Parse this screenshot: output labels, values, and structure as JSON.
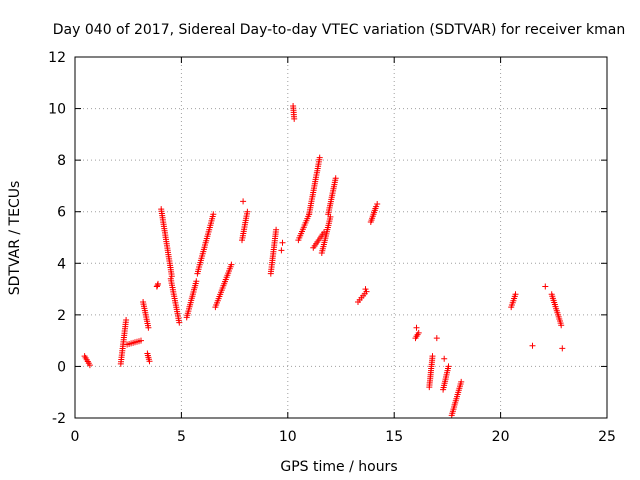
{
  "chart_data": {
    "type": "scatter",
    "title": "Day 040 of 2017, Sidereal Day-to-day VTEC variation (SDTVAR) for receiver kman",
    "xlabel": "GPS time / hours",
    "ylabel": "SDTVAR / TECUs",
    "xlim": [
      0,
      25
    ],
    "ylim": [
      -2,
      12
    ],
    "xticks": [
      0,
      5,
      10,
      15,
      20,
      25
    ],
    "yticks": [
      -2,
      0,
      2,
      4,
      6,
      8,
      10,
      12
    ],
    "grid": true,
    "marker": "+",
    "series_color": "#ff0000",
    "segments": [
      {
        "x0": 0.45,
        "y0": 0.4,
        "x1": 0.7,
        "y1": 0.05
      },
      {
        "x0": 2.15,
        "y0": 0.1,
        "x1": 2.4,
        "y1": 1.8
      },
      {
        "x0": 2.45,
        "y0": 0.85,
        "x1": 3.1,
        "y1": 1.0
      },
      {
        "x0": 3.2,
        "y0": 2.5,
        "x1": 3.45,
        "y1": 1.5
      },
      {
        "x0": 3.4,
        "y0": 0.5,
        "x1": 3.5,
        "y1": 0.2
      },
      {
        "x0": 3.85,
        "y0": 3.1,
        "x1": 3.9,
        "y1": 3.2
      },
      {
        "x0": 4.05,
        "y0": 6.1,
        "x1": 4.55,
        "y1": 3.5
      },
      {
        "x0": 4.5,
        "y0": 3.4,
        "x1": 4.9,
        "y1": 1.7
      },
      {
        "x0": 5.25,
        "y0": 1.9,
        "x1": 5.7,
        "y1": 3.3
      },
      {
        "x0": 5.75,
        "y0": 3.6,
        "x1": 6.5,
        "y1": 5.9
      },
      {
        "x0": 6.6,
        "y0": 2.3,
        "x1": 7.35,
        "y1": 3.95
      },
      {
        "x0": 7.85,
        "y0": 4.9,
        "x1": 8.1,
        "y1": 6.0
      },
      {
        "x0": 9.2,
        "y0": 3.6,
        "x1": 9.45,
        "y1": 5.3
      },
      {
        "x0": 10.25,
        "y0": 10.1,
        "x1": 10.3,
        "y1": 9.6
      },
      {
        "x0": 10.5,
        "y0": 4.9,
        "x1": 11.0,
        "y1": 5.9
      },
      {
        "x0": 11.0,
        "y0": 5.9,
        "x1": 11.5,
        "y1": 8.1
      },
      {
        "x0": 11.2,
        "y0": 4.6,
        "x1": 11.7,
        "y1": 5.2
      },
      {
        "x0": 11.6,
        "y0": 4.4,
        "x1": 12.0,
        "y1": 5.8
      },
      {
        "x0": 11.9,
        "y0": 5.9,
        "x1": 12.25,
        "y1": 7.3
      },
      {
        "x0": 13.3,
        "y0": 2.5,
        "x1": 13.7,
        "y1": 2.9
      },
      {
        "x0": 13.9,
        "y0": 5.6,
        "x1": 14.15,
        "y1": 6.2
      },
      {
        "x0": 16.0,
        "y0": 1.1,
        "x1": 16.15,
        "y1": 1.3
      },
      {
        "x0": 16.65,
        "y0": -0.8,
        "x1": 16.8,
        "y1": 0.4
      },
      {
        "x0": 17.3,
        "y0": -0.9,
        "x1": 17.55,
        "y1": 0.0
      },
      {
        "x0": 17.7,
        "y0": -1.9,
        "x1": 18.15,
        "y1": -0.6
      },
      {
        "x0": 20.5,
        "y0": 2.3,
        "x1": 20.7,
        "y1": 2.8
      },
      {
        "x0": 22.4,
        "y0": 2.8,
        "x1": 22.85,
        "y1": 1.6
      }
    ],
    "isolated_points": [
      {
        "x": 3.85,
        "y": 3.1
      },
      {
        "x": 7.9,
        "y": 6.4
      },
      {
        "x": 9.7,
        "y": 4.5
      },
      {
        "x": 9.75,
        "y": 4.8
      },
      {
        "x": 13.65,
        "y": 3.0
      },
      {
        "x": 14.2,
        "y": 6.3
      },
      {
        "x": 16.05,
        "y": 1.5
      },
      {
        "x": 17.0,
        "y": 1.1
      },
      {
        "x": 17.35,
        "y": 0.3
      },
      {
        "x": 21.5,
        "y": 0.8
      },
      {
        "x": 22.1,
        "y": 3.1
      },
      {
        "x": 22.9,
        "y": 0.7
      }
    ]
  }
}
